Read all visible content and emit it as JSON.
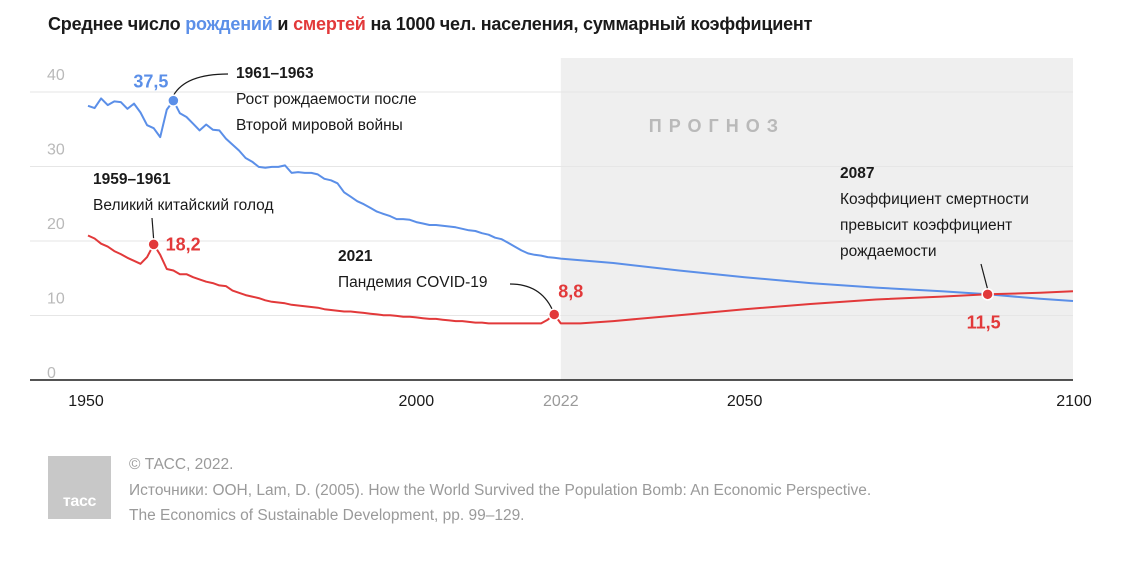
{
  "title": {
    "prefix": "Среднее число ",
    "births": "рождений",
    "middle": " и ",
    "deaths": "смертей",
    "suffix": " на 1000 чел. населения, суммарный коэффициент"
  },
  "colors": {
    "births": "#5b8fe8",
    "deaths": "#e2393a",
    "forecast_bg": "#efefef"
  },
  "chart_data": {
    "type": "line",
    "x_range": [
      1950,
      2100
    ],
    "y_range": [
      0,
      40
    ],
    "y_ticks": [
      0,
      10,
      20,
      30,
      40
    ],
    "x_ticks": [
      {
        "value": 1950,
        "label": "1950"
      },
      {
        "value": 2000,
        "label": "2000"
      },
      {
        "value": 2022,
        "label": "2022"
      },
      {
        "value": 2050,
        "label": "2050"
      },
      {
        "value": 2100,
        "label": "2100"
      }
    ],
    "grid": true,
    "forecast": {
      "from": 2022,
      "to": 2100,
      "label": "ПРОГНОЗ"
    },
    "series": [
      {
        "key": "births",
        "color": "#5b8fe8",
        "points": [
          [
            1950,
            36.8
          ],
          [
            1951,
            36.5
          ],
          [
            1952,
            37.8
          ],
          [
            1953,
            36.9
          ],
          [
            1954,
            37.4
          ],
          [
            1955,
            37.3
          ],
          [
            1956,
            36.4
          ],
          [
            1957,
            37.1
          ],
          [
            1958,
            35.9
          ],
          [
            1959,
            34.2
          ],
          [
            1960,
            33.8
          ],
          [
            1961,
            32.6
          ],
          [
            1962,
            36.3
          ],
          [
            1963,
            37.5
          ],
          [
            1964,
            35.8
          ],
          [
            1965,
            35.3
          ],
          [
            1966,
            34.4
          ],
          [
            1967,
            33.5
          ],
          [
            1968,
            34.3
          ],
          [
            1969,
            33.6
          ],
          [
            1970,
            33.5
          ],
          [
            1971,
            32.4
          ],
          [
            1972,
            31.6
          ],
          [
            1973,
            30.8
          ],
          [
            1974,
            29.8
          ],
          [
            1975,
            29.3
          ],
          [
            1976,
            28.6
          ],
          [
            1977,
            28.5
          ],
          [
            1978,
            28.6
          ],
          [
            1979,
            28.6
          ],
          [
            1980,
            28.8
          ],
          [
            1981,
            27.8
          ],
          [
            1982,
            27.9
          ],
          [
            1983,
            27.8
          ],
          [
            1984,
            27.8
          ],
          [
            1985,
            27.6
          ],
          [
            1986,
            27.0
          ],
          [
            1987,
            26.8
          ],
          [
            1988,
            26.4
          ],
          [
            1989,
            25.2
          ],
          [
            1990,
            24.6
          ],
          [
            1991,
            24.0
          ],
          [
            1992,
            23.6
          ],
          [
            1993,
            23.1
          ],
          [
            1994,
            22.6
          ],
          [
            1995,
            22.3
          ],
          [
            1996,
            22.0
          ],
          [
            1997,
            21.6
          ],
          [
            1998,
            21.6
          ],
          [
            1999,
            21.5
          ],
          [
            2000,
            21.2
          ],
          [
            2001,
            21.0
          ],
          [
            2002,
            20.8
          ],
          [
            2003,
            20.8
          ],
          [
            2004,
            20.7
          ],
          [
            2005,
            20.6
          ],
          [
            2006,
            20.5
          ],
          [
            2007,
            20.3
          ],
          [
            2008,
            20.1
          ],
          [
            2009,
            20.0
          ],
          [
            2010,
            19.7
          ],
          [
            2011,
            19.5
          ],
          [
            2012,
            19.1
          ],
          [
            2013,
            18.9
          ],
          [
            2014,
            18.4
          ],
          [
            2015,
            17.9
          ],
          [
            2016,
            17.4
          ],
          [
            2017,
            17.0
          ],
          [
            2018,
            16.8
          ],
          [
            2019,
            16.7
          ],
          [
            2020,
            16.5
          ],
          [
            2021,
            16.4
          ],
          [
            2022,
            16.3
          ],
          [
            2030,
            15.7
          ],
          [
            2040,
            14.7
          ],
          [
            2050,
            13.8
          ],
          [
            2060,
            13.0
          ],
          [
            2070,
            12.4
          ],
          [
            2080,
            11.9
          ],
          [
            2087,
            11.5
          ],
          [
            2095,
            10.9
          ],
          [
            2100,
            10.6
          ]
        ]
      },
      {
        "key": "deaths",
        "color": "#e2393a",
        "points": [
          [
            1950,
            19.4
          ],
          [
            1951,
            19.0
          ],
          [
            1952,
            18.3
          ],
          [
            1953,
            17.9
          ],
          [
            1954,
            17.3
          ],
          [
            1955,
            16.9
          ],
          [
            1956,
            16.4
          ],
          [
            1957,
            16.0
          ],
          [
            1958,
            15.6
          ],
          [
            1959,
            16.5
          ],
          [
            1960,
            18.2
          ],
          [
            1961,
            16.8
          ],
          [
            1962,
            14.9
          ],
          [
            1963,
            14.7
          ],
          [
            1964,
            14.2
          ],
          [
            1965,
            14.2
          ],
          [
            1966,
            13.8
          ],
          [
            1967,
            13.5
          ],
          [
            1968,
            13.2
          ],
          [
            1969,
            13.0
          ],
          [
            1970,
            12.7
          ],
          [
            1971,
            12.6
          ],
          [
            1972,
            12.0
          ],
          [
            1973,
            11.7
          ],
          [
            1974,
            11.4
          ],
          [
            1975,
            11.2
          ],
          [
            1976,
            11.0
          ],
          [
            1977,
            10.7
          ],
          [
            1978,
            10.5
          ],
          [
            1979,
            10.4
          ],
          [
            1980,
            10.3
          ],
          [
            1981,
            10.1
          ],
          [
            1982,
            10.0
          ],
          [
            1983,
            9.9
          ],
          [
            1984,
            9.8
          ],
          [
            1985,
            9.7
          ],
          [
            1986,
            9.5
          ],
          [
            1987,
            9.4
          ],
          [
            1988,
            9.3
          ],
          [
            1989,
            9.2
          ],
          [
            1990,
            9.2
          ],
          [
            1991,
            9.1
          ],
          [
            1992,
            9.0
          ],
          [
            1993,
            8.9
          ],
          [
            1994,
            8.8
          ],
          [
            1995,
            8.7
          ],
          [
            1996,
            8.7
          ],
          [
            1997,
            8.6
          ],
          [
            1998,
            8.5
          ],
          [
            1999,
            8.5
          ],
          [
            2000,
            8.4
          ],
          [
            2001,
            8.3
          ],
          [
            2002,
            8.2
          ],
          [
            2003,
            8.2
          ],
          [
            2004,
            8.1
          ],
          [
            2005,
            8.0
          ],
          [
            2006,
            7.9
          ],
          [
            2007,
            7.9
          ],
          [
            2008,
            7.8
          ],
          [
            2009,
            7.7
          ],
          [
            2010,
            7.7
          ],
          [
            2011,
            7.6
          ],
          [
            2012,
            7.6
          ],
          [
            2013,
            7.6
          ],
          [
            2014,
            7.6
          ],
          [
            2015,
            7.6
          ],
          [
            2016,
            7.6
          ],
          [
            2017,
            7.6
          ],
          [
            2018,
            7.6
          ],
          [
            2019,
            7.6
          ],
          [
            2020,
            8.1
          ],
          [
            2021,
            8.8
          ],
          [
            2022,
            7.6
          ],
          [
            2025,
            7.6
          ],
          [
            2030,
            7.9
          ],
          [
            2040,
            8.7
          ],
          [
            2050,
            9.5
          ],
          [
            2060,
            10.2
          ],
          [
            2070,
            10.8
          ],
          [
            2080,
            11.2
          ],
          [
            2087,
            11.5
          ],
          [
            2095,
            11.7
          ],
          [
            2100,
            11.9
          ]
        ]
      }
    ],
    "highlights": [
      {
        "key": "births-peak",
        "series": "births",
        "x": 1963,
        "y": 37.5,
        "label": "37,5",
        "ann_title": "1961–1963",
        "ann_lines": [
          "Рост рождаемости после",
          "Второй мировой войны"
        ]
      },
      {
        "key": "famine",
        "series": "deaths",
        "x": 1960,
        "y": 18.2,
        "label": "18,2",
        "ann_title": "1959–1961",
        "ann_lines": [
          "Великий китайский голод"
        ]
      },
      {
        "key": "covid",
        "series": "deaths",
        "x": 2021,
        "y": 8.8,
        "label": "8,8",
        "ann_title": "2021",
        "ann_lines": [
          "Пандемия COVID-19"
        ]
      },
      {
        "key": "crossover",
        "series": "deaths",
        "x": 2087,
        "y": 11.5,
        "label": "11,5",
        "ann_title": "2087",
        "ann_lines": [
          "Коэффициент смертности",
          "превысит коэффициент",
          "рождаемости"
        ]
      }
    ]
  },
  "footer": {
    "logo_text": "тасс",
    "lines": [
      "© ТАСС, 2022.",
      "Источники: ООН, Lam, D. (2005). How the World Survived the Population Bomb: An Economic Perspective.",
      "The Economics of Sustainable Development, pp. 99–129."
    ]
  }
}
